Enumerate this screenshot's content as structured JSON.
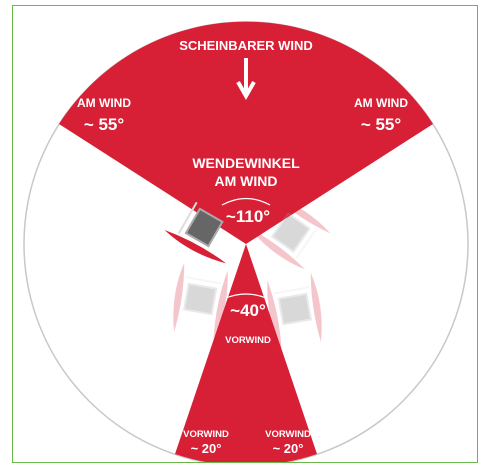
{
  "header": {
    "title": "SCHEINBARER WIND"
  },
  "sectors": {
    "close_hauled_left": {
      "label": "AM WIND",
      "angle": "~ 55°"
    },
    "close_hauled_right": {
      "label": "AM WIND",
      "angle": "~ 55°"
    },
    "tacking": {
      "label_1": "WENDEWINKEL",
      "label_2": "AM WIND",
      "angle": "~110°"
    },
    "downwind": {
      "angle": "~40°",
      "label": "VORWIND"
    },
    "downwind_left": {
      "label": "VORWIND",
      "angle": "~ 20°"
    },
    "downwind_right": {
      "label": "VORWIND",
      "angle": "~ 20°"
    }
  }
}
